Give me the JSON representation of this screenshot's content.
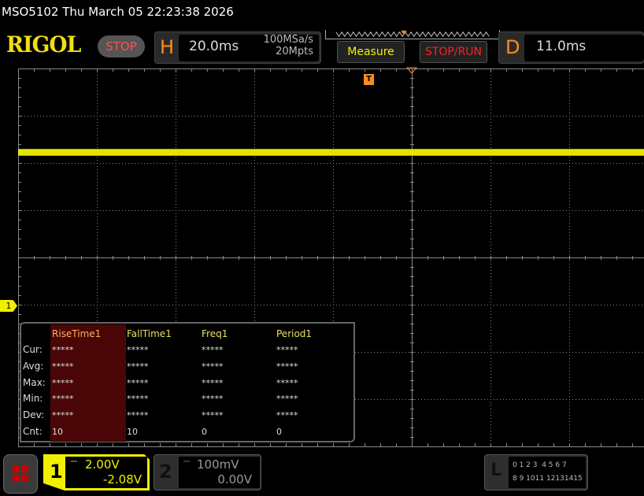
{
  "title": "MSO5102  Thu March 05 22:23:38 2026",
  "logo": "RIGOL",
  "run_state": "STOP",
  "horizontal": {
    "letter": "H",
    "timebase": "20.0ms",
    "sample_rate": "100MSa/s",
    "memory_depth": "20Mpts"
  },
  "buttons": {
    "measure": "Measure",
    "stop_run": "STOP/RUN"
  },
  "delay": {
    "letter": "D",
    "value": "11.0ms"
  },
  "trigger_marker": "T",
  "channel1_marker": "1",
  "measure_table": {
    "columns": [
      "RiseTime1",
      "FallTime1",
      "Freq1",
      "Period1"
    ],
    "rows": [
      {
        "label": "Cur:",
        "values": [
          "*****",
          "*****",
          "*****",
          "*****"
        ]
      },
      {
        "label": "Avg:",
        "values": [
          "*****",
          "*****",
          "*****",
          "*****"
        ]
      },
      {
        "label": "Max:",
        "values": [
          "*****",
          "*****",
          "*****",
          "*****"
        ]
      },
      {
        "label": "Min:",
        "values": [
          "*****",
          "*****",
          "*****",
          "*****"
        ]
      },
      {
        "label": "Dev:",
        "values": [
          "*****",
          "*****",
          "*****",
          "*****"
        ]
      },
      {
        "label": "Cnt:",
        "values": [
          "10",
          "10",
          "0",
          "0"
        ]
      }
    ]
  },
  "channel1": {
    "number": "1",
    "scale": "2.00V",
    "offset": "-2.08V",
    "color": "#f0f000"
  },
  "channel2": {
    "number": "2",
    "scale": "100mV",
    "offset": "0.00V"
  },
  "logic": {
    "letter": "L",
    "row1": "0 1 2 3  4 5 6 7",
    "row2": "8 9 1011 12131415"
  },
  "colors": {
    "accent": "#ff8c1a",
    "trace": "#f0f000",
    "stop": "#ff2020"
  }
}
